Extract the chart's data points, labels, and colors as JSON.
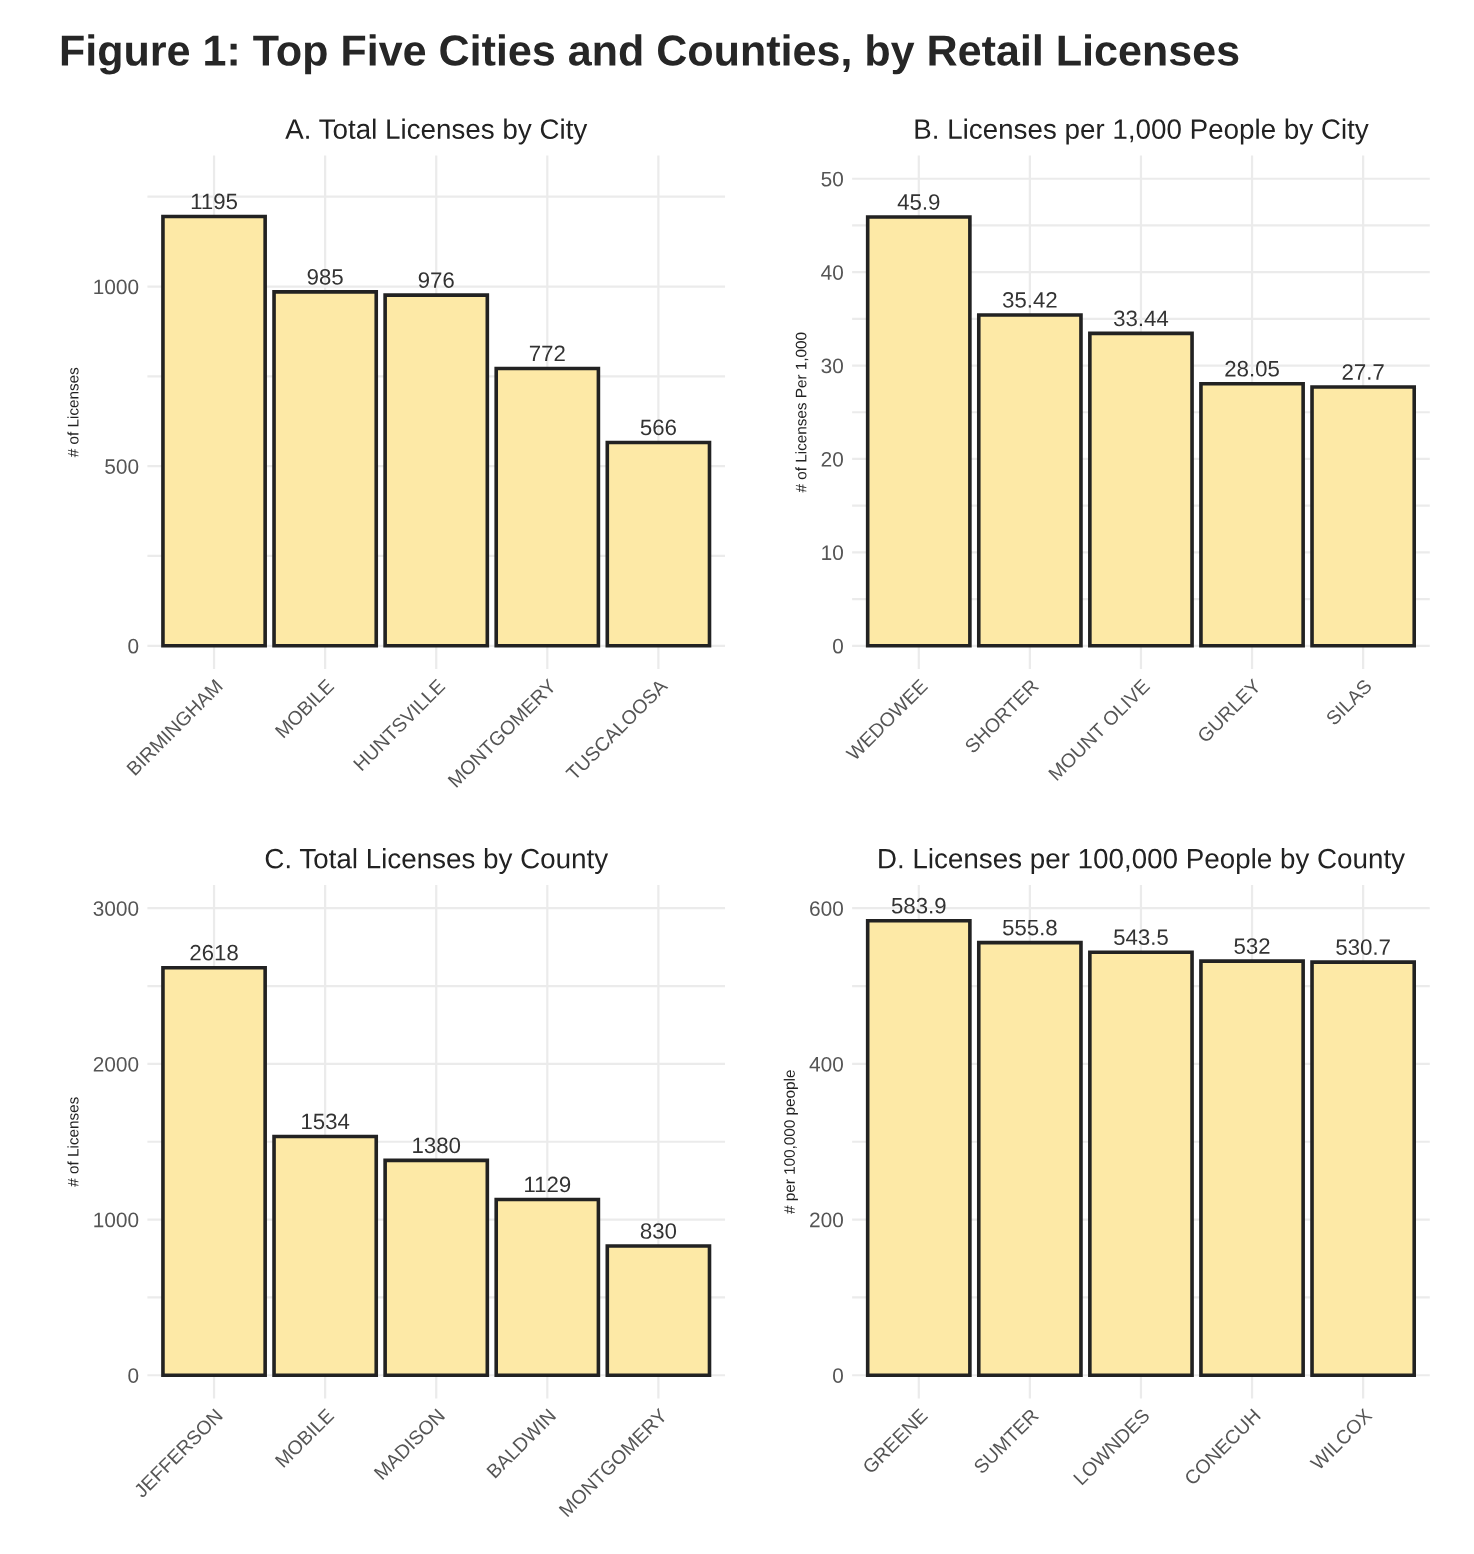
{
  "chart_data": [
    {
      "type": "other",
      "title": "Figure 1: Top Five Cities and Counties, by Retail Licenses"
    },
    {
      "type": "bar",
      "title": "A. Total Licenses by City",
      "ylabel": "# of Licenses",
      "categories": [
        "BIRMINGHAM",
        "MOBILE",
        "HUNTSVILLE",
        "MONTGOMERY",
        "TUSCALOOSA"
      ],
      "values": [
        1195,
        985,
        976,
        772,
        566
      ],
      "color": "#fde9a6",
      "data_labels": true,
      "grid": true,
      "ylim": [
        -65,
        1365
      ],
      "yticks": [
        0,
        {
          "value": 250,
          "label": null
        },
        500,
        {
          "value": 750,
          "label": null
        },
        1000,
        {
          "value": 1250,
          "label": null
        }
      ]
    },
    {
      "type": "bar",
      "title": "B. Licenses per 1,000 People by City",
      "ylabel": "# of Licenses Per 1,000",
      "categories": [
        "WEDOWEE",
        "SHORTER",
        "MOUNT OLIVE",
        "GURLEY",
        "SILAS"
      ],
      "values": [
        45.9,
        35.42,
        33.44,
        28.05,
        27.7
      ],
      "color": "#fde9a6",
      "data_labels": true,
      "grid": true,
      "ylim": [
        -2.5,
        52.5
      ],
      "yticks": [
        0,
        {
          "value": 5,
          "label": null
        },
        10,
        {
          "value": 15,
          "label": null
        },
        20,
        {
          "value": 25,
          "label": null
        },
        30,
        {
          "value": 35,
          "label": null
        },
        40,
        {
          "value": 45,
          "label": null
        },
        50
      ]
    },
    {
      "type": "bar",
      "title": "C. Total Licenses by County",
      "ylabel": "# of Licenses",
      "categories": [
        "JEFFERSON",
        "MOBILE",
        "MADISON",
        "BALDWIN",
        "MONTGOMERY"
      ],
      "values": [
        2618,
        1534,
        1380,
        1129,
        830
      ],
      "color": "#fde9a6",
      "data_labels": true,
      "grid": true,
      "ylim": [
        -150,
        3150
      ],
      "yticks": [
        0,
        {
          "value": 500,
          "label": null
        },
        1000,
        {
          "value": 1500,
          "label": null
        },
        2000,
        {
          "value": 2500,
          "label": null
        },
        3000
      ]
    },
    {
      "type": "bar",
      "title": "D. Licenses per 100,000 People by County",
      "ylabel": "# per 100,000 people",
      "categories": [
        "GREENE",
        "SUMTER",
        "LOWNDES",
        "CONECUH",
        "WILCOX"
      ],
      "values": [
        583.9,
        555.8,
        543.5,
        532,
        530.7
      ],
      "color": "#fde9a6",
      "data_labels": true,
      "grid": true,
      "ylim": [
        -30,
        630
      ],
      "yticks": [
        0,
        {
          "value": 100,
          "label": null
        },
        200,
        {
          "value": 300,
          "label": null
        },
        400,
        {
          "value": 500,
          "label": null
        },
        600
      ]
    }
  ]
}
